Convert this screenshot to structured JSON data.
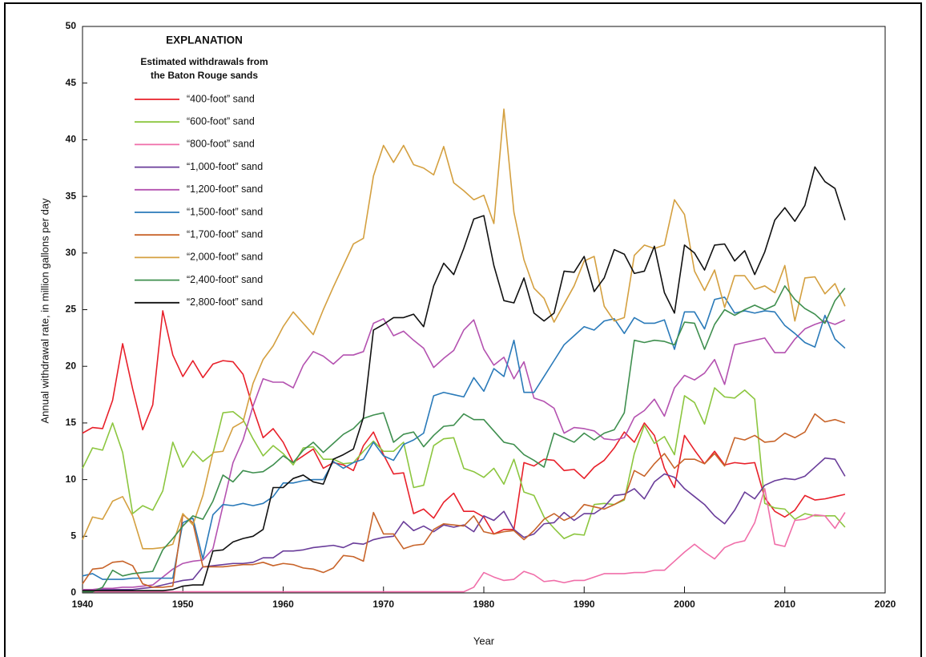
{
  "chart_data": {
    "type": "line",
    "legend_title": "EXPLANATION",
    "legend_subtitle": [
      "Estimated withdrawals from",
      "the Baton Rouge sands"
    ],
    "x_label": "Year",
    "y_label": "Annual withdrawal rate, in million gallons per day",
    "xlim": [
      1940,
      2020
    ],
    "xticks": [
      1940,
      1950,
      1960,
      1970,
      1980,
      1990,
      2000,
      2010,
      2020
    ],
    "ylim": [
      0,
      50
    ],
    "yticks": [
      0,
      5,
      10,
      15,
      20,
      25,
      30,
      35,
      40,
      45,
      50
    ],
    "legend": "upper-left",
    "x": [
      1940,
      1941,
      1942,
      1943,
      1944,
      1945,
      1946,
      1947,
      1948,
      1949,
      1950,
      1951,
      1952,
      1953,
      1954,
      1955,
      1956,
      1957,
      1958,
      1959,
      1960,
      1961,
      1962,
      1963,
      1964,
      1965,
      1966,
      1967,
      1968,
      1969,
      1970,
      1971,
      1972,
      1973,
      1974,
      1975,
      1976,
      1977,
      1978,
      1979,
      1980,
      1981,
      1982,
      1983,
      1984,
      1985,
      1986,
      1987,
      1988,
      1989,
      1990,
      1991,
      1992,
      1993,
      1994,
      1995,
      1996,
      1997,
      1998,
      1999,
      2000,
      2001,
      2002,
      2003,
      2004,
      2005,
      2006,
      2007,
      2008,
      2009,
      2010,
      2011,
      2012,
      2013,
      2014,
      2015,
      2016
    ],
    "series": [
      {
        "name": "“400-foot” sand",
        "color": "#e8202a",
        "values": [
          14.1,
          14.6,
          14.5,
          17,
          22,
          18,
          14.4,
          16.6,
          24.9,
          21,
          19.1,
          20.5,
          19,
          20.2,
          20.5,
          20.4,
          19.3,
          16.3,
          13.7,
          14.5,
          13.3,
          11.5,
          12.1,
          12.7,
          11,
          11.5,
          11.3,
          10.8,
          13,
          14.2,
          12.2,
          10.5,
          10.6,
          7,
          7.4,
          6.6,
          8,
          8.8,
          7.2,
          7.2,
          6.7,
          5.2,
          5.6,
          5.6,
          11.5,
          11.2,
          11.8,
          11.7,
          10.8,
          10.9,
          10.1,
          11.1,
          11.7,
          12.8,
          14.2,
          13.3,
          15,
          13.9,
          11,
          9.3,
          13.9,
          12.6,
          11.4,
          12.5,
          11.3,
          11.5,
          11.4,
          11.5,
          8.4,
          7.2,
          6.7,
          7.3,
          8.6,
          8.2,
          8.3,
          8.5,
          8.7
        ]
      },
      {
        "name": "“600-foot” sand",
        "color": "#8cc63f",
        "values": [
          11,
          12.8,
          12.6,
          15,
          12.4,
          7,
          7.7,
          7.3,
          9,
          13.3,
          11.1,
          12.5,
          11.6,
          12.3,
          15.9,
          16,
          15.3,
          13.6,
          12.1,
          13,
          12.3,
          11.3,
          12.8,
          12.9,
          11.8,
          11.8,
          11.4,
          11.5,
          12.5,
          13.4,
          12.5,
          12.5,
          13.3,
          9.3,
          9.5,
          13,
          13.6,
          13.7,
          11,
          10.7,
          10.2,
          11,
          9.6,
          11.8,
          8.9,
          8.6,
          6.7,
          5.7,
          4.8,
          5.2,
          5.1,
          7.8,
          7.9,
          7.8,
          8.2,
          12.3,
          14.8,
          13.2,
          13.8,
          12.2,
          17.4,
          16.8,
          14.9,
          18.1,
          17.3,
          17.2,
          17.9,
          17.1,
          7.9,
          7.5,
          7.4,
          6.5,
          7,
          6.8,
          6.8,
          6.8,
          5.8
        ]
      },
      {
        "name": "“800-foot” sand",
        "color": "#f06ea9",
        "values": [
          0.1,
          0.1,
          0.1,
          0.1,
          0.1,
          0.1,
          0.1,
          0.1,
          0.1,
          0.1,
          0.1,
          0.1,
          0.1,
          0.1,
          0.1,
          0.1,
          0.1,
          0.1,
          0.1,
          0.1,
          0.1,
          0.1,
          0.1,
          0.1,
          0.1,
          0.1,
          0.1,
          0.1,
          0.1,
          0.1,
          0.1,
          0.1,
          0.1,
          0.1,
          0.1,
          0.1,
          0.1,
          0.1,
          0.1,
          0.5,
          1.8,
          1.4,
          1.1,
          1.2,
          1.9,
          1.6,
          1,
          1.1,
          0.9,
          1.1,
          1.1,
          1.4,
          1.7,
          1.7,
          1.7,
          1.8,
          1.8,
          2,
          2,
          2.8,
          3.6,
          4.3,
          3.6,
          3,
          4,
          4.4,
          4.6,
          6.2,
          9.2,
          4.3,
          4.1,
          6.4,
          6.5,
          6.9,
          6.8,
          5.7,
          7.1
        ]
      },
      {
        "name": "“1,000-foot” sand",
        "color": "#6a3d9a",
        "values": [
          0.3,
          0.3,
          0.3,
          0.3,
          0.3,
          0.3,
          0.4,
          0.5,
          0.7,
          0.9,
          1.1,
          1.2,
          2.3,
          2.4,
          2.5,
          2.6,
          2.6,
          2.7,
          3.1,
          3.1,
          3.7,
          3.7,
          3.8,
          4,
          4.1,
          4.2,
          4,
          4.4,
          4.3,
          4.7,
          4.9,
          5,
          6.3,
          5.5,
          5.9,
          5.4,
          6,
          5.8,
          6,
          5.4,
          6.8,
          6.4,
          7.2,
          5.6,
          4.9,
          5.2,
          6.1,
          6.2,
          7.1,
          6.4,
          7,
          7,
          7.6,
          8.6,
          8.7,
          9.2,
          8.3,
          9.8,
          10.5,
          10.2,
          9.2,
          8.5,
          7.8,
          6.8,
          6.1,
          7.3,
          8.9,
          8.3,
          9.5,
          9.9,
          10.1,
          10,
          10.3,
          11.1,
          11.9,
          11.8,
          10.3
        ]
      },
      {
        "name": "“1,200-foot” sand",
        "color": "#b452b0",
        "values": [
          0.3,
          0.3,
          0.4,
          0.4,
          0.5,
          0.5,
          0.6,
          0.7,
          1.4,
          2.1,
          2.6,
          2.8,
          2.9,
          3.9,
          7.7,
          11.5,
          13.5,
          16.5,
          18.9,
          18.6,
          18.6,
          18.1,
          20.1,
          21.3,
          20.9,
          20.2,
          21,
          21,
          21.3,
          23.8,
          24.2,
          22.7,
          23.1,
          22.3,
          21.6,
          19.9,
          20.7,
          21.4,
          23.2,
          24.1,
          21.5,
          20.1,
          20.8,
          18.9,
          20.4,
          17.2,
          16.9,
          16.3,
          14.1,
          14.6,
          14.5,
          14.3,
          13.6,
          13.5,
          13.7,
          15.5,
          16.1,
          17.1,
          15.6,
          18.1,
          19.2,
          18.8,
          19.4,
          20.6,
          18.4,
          21.9,
          22.1,
          22.3,
          22.5,
          21.2,
          21.2,
          22.4,
          23.3,
          23.7,
          24,
          23.7,
          24.1
        ]
      },
      {
        "name": "“1,500-foot” sand",
        "color": "#2a7ab9",
        "values": [
          1.5,
          1.7,
          1.2,
          1.2,
          1.2,
          1.3,
          1.3,
          1.3,
          1.3,
          1.3,
          6.2,
          6.6,
          3,
          6.9,
          7.8,
          7.7,
          7.9,
          7.7,
          7.9,
          8.5,
          9.7,
          9.7,
          9.9,
          10,
          10,
          11.6,
          11,
          11.5,
          11.8,
          13.3,
          12.1,
          11.7,
          13.1,
          13.5,
          14.1,
          17.4,
          17.7,
          17.5,
          17.3,
          19,
          17.8,
          19.8,
          19.1,
          22.3,
          17.7,
          17.7,
          19.1,
          20.5,
          21.9,
          22.7,
          23.5,
          23.2,
          24,
          24.2,
          22.9,
          24.3,
          23.8,
          23.8,
          24.1,
          21.5,
          24.8,
          24.8,
          23.3,
          25.9,
          26.1,
          24.7,
          24.9,
          24.7,
          24.9,
          24.8,
          23.6,
          22.9,
          22.1,
          21.7,
          24.5,
          22.4,
          21.6
        ]
      },
      {
        "name": "“1,700-foot” sand",
        "color": "#c8642a",
        "values": [
          0.8,
          2.1,
          2.2,
          2.7,
          2.8,
          2.4,
          0.8,
          0.5,
          0.5,
          0.6,
          6.9,
          6.2,
          2.3,
          2.3,
          2.3,
          2.4,
          2.5,
          2.5,
          2.7,
          2.4,
          2.6,
          2.5,
          2.2,
          2.1,
          1.8,
          2.2,
          3.3,
          3.2,
          2.8,
          7.1,
          5.2,
          5.2,
          3.9,
          4.2,
          4.3,
          5.6,
          6.1,
          6,
          5.9,
          6.8,
          5.4,
          5.2,
          5.4,
          5.5,
          4.7,
          5.5,
          6.5,
          7,
          6.4,
          6.8,
          7.8,
          7.6,
          7.4,
          7.8,
          8.3,
          10.8,
          10.3,
          11.4,
          12.3,
          11,
          11.8,
          11.8,
          11.4,
          12.3,
          11.2,
          13.7,
          13.5,
          13.9,
          13.3,
          13.4,
          14.1,
          13.7,
          14.2,
          15.8,
          15.1,
          15.3,
          15
        ]
      },
      {
        "name": "“2,000-foot” sand",
        "color": "#d4a040",
        "values": [
          4.7,
          6.7,
          6.5,
          8.1,
          8.5,
          6.8,
          3.9,
          3.9,
          4,
          4.3,
          7,
          6,
          8.6,
          12.4,
          12.5,
          14.6,
          15.1,
          18.5,
          20.6,
          21.8,
          23.5,
          24.8,
          23.8,
          22.8,
          25,
          27,
          28.9,
          30.8,
          31.3,
          36.8,
          39.5,
          38,
          39.5,
          37.8,
          37.5,
          36.9,
          39.4,
          36.2,
          35.5,
          34.7,
          35.1,
          32.6,
          42.7,
          33.6,
          29.4,
          26.9,
          26,
          23.9,
          25.5,
          27.1,
          29.3,
          29.7,
          25.3,
          24,
          24.3,
          29.8,
          30.7,
          30.4,
          30.7,
          34.7,
          33.4,
          28.4,
          26.7,
          28.5,
          25.2,
          28,
          28,
          26.8,
          27.1,
          26.5,
          28.9,
          24,
          27.8,
          27.9,
          26.4,
          27.3,
          25.3
        ]
      },
      {
        "name": "“2,400-foot” sand",
        "color": "#3f8f4f",
        "values": [
          0.1,
          0.1,
          0.5,
          2,
          1.5,
          1.7,
          1.8,
          1.9,
          3.8,
          4.8,
          5.9,
          6.8,
          6.5,
          8.1,
          10.4,
          9.8,
          10.8,
          10.6,
          10.7,
          11.3,
          12.1,
          11.5,
          12.6,
          13.3,
          12.4,
          13.2,
          14,
          14.5,
          15.4,
          15.7,
          15.9,
          13.3,
          14,
          14.2,
          12.9,
          13.9,
          14.7,
          14.8,
          15.8,
          15.3,
          15.3,
          14.3,
          13.3,
          13.1,
          12.2,
          11.7,
          11.1,
          14.1,
          13.7,
          13.3,
          14.1,
          13.5,
          14.1,
          14.4,
          15.9,
          22.3,
          22.1,
          22.3,
          22.2,
          21.9,
          23.9,
          23.8,
          21.5,
          23.7,
          25,
          24.5,
          25,
          25.4,
          25,
          25.4,
          27.1,
          25.9,
          25.1,
          24.6,
          23.8,
          25.8,
          26.9
        ]
      },
      {
        "name": "“2,800-foot” sand",
        "color": "#111111",
        "values": [
          0.2,
          0.2,
          0.2,
          0.2,
          0.2,
          0.2,
          0.2,
          0.2,
          0.2,
          0.3,
          0.6,
          0.7,
          0.7,
          3.7,
          3.8,
          4.5,
          4.8,
          5,
          5.6,
          9.3,
          9.3,
          10.1,
          10.4,
          9.8,
          9.6,
          11.8,
          12.2,
          12.7,
          15.5,
          23.2,
          23.7,
          24.3,
          24.3,
          24.6,
          23.5,
          27.1,
          29.1,
          28.1,
          30.4,
          33,
          33.3,
          28.9,
          25.8,
          25.6,
          27.8,
          24.7,
          24,
          24.7,
          28.4,
          28.3,
          29.7,
          26.6,
          27.8,
          30.3,
          29.9,
          28.2,
          28.4,
          30.6,
          26.5,
          24.7,
          30.7,
          30,
          28.5,
          30.7,
          30.8,
          29.3,
          30.2,
          28.1,
          30.1,
          32.9,
          34,
          32.8,
          34.2,
          37.6,
          36.3,
          35.7,
          32.9
        ]
      }
    ]
  }
}
